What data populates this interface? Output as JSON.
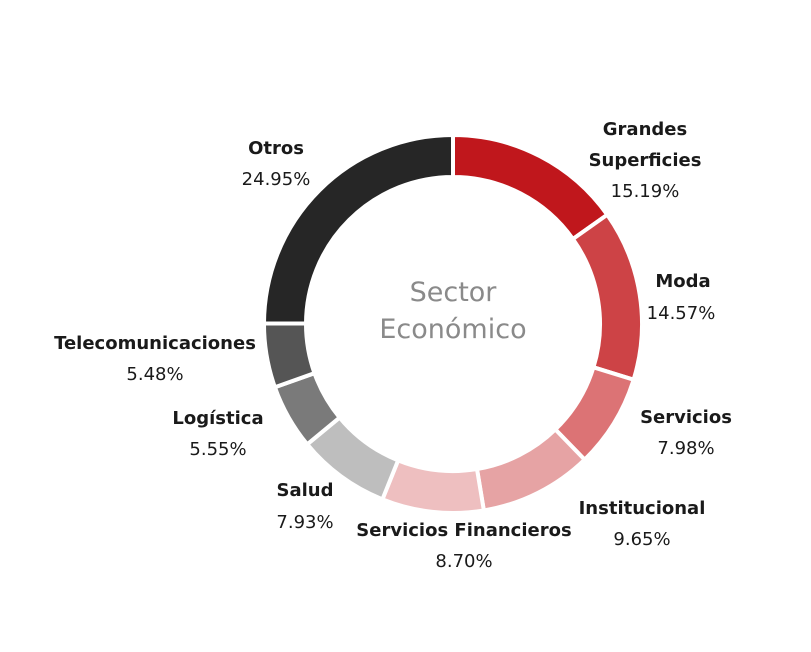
{
  "chart_data": {
    "type": "pie",
    "style": "donut",
    "title": "Sector Económico",
    "title_lines": [
      "Sector",
      "Económico"
    ],
    "slices": [
      {
        "label": "Grandes Superficies",
        "label_lines": [
          "Grandes",
          "Superficies"
        ],
        "value": 15.19,
        "value_label": "15.19%",
        "color": "#c0171c"
      },
      {
        "label": "Moda",
        "label_lines": [
          "Moda"
        ],
        "value": 14.57,
        "value_label": "14.57%",
        "color": "#cd4346"
      },
      {
        "label": "Servicios",
        "label_lines": [
          "Servicios"
        ],
        "value": 7.98,
        "value_label": "7.98%",
        "color": "#dc7375"
      },
      {
        "label": "Institucional",
        "label_lines": [
          "Institucional"
        ],
        "value": 9.65,
        "value_label": "9.65%",
        "color": "#e6a3a4"
      },
      {
        "label": "Servicios Financieros",
        "label_lines": [
          "Servicios Financieros"
        ],
        "value": 8.7,
        "value_label": "8.70%",
        "color": "#eebfc0"
      },
      {
        "label": "Salud",
        "label_lines": [
          "Salud"
        ],
        "value": 7.93,
        "value_label": "7.93%",
        "color": "#bebebe"
      },
      {
        "label": "Logística",
        "label_lines": [
          "Logística"
        ],
        "value": 5.55,
        "value_label": "5.55%",
        "color": "#7a7a7a"
      },
      {
        "label": "Telecomunicaciones",
        "label_lines": [
          "Telecomunicaciones"
        ],
        "value": 5.48,
        "value_label": "5.48%",
        "color": "#555555"
      },
      {
        "label": "Otros",
        "label_lines": [
          "Otros"
        ],
        "value": 24.95,
        "value_label": "24.95%",
        "color": "#262626"
      }
    ]
  }
}
